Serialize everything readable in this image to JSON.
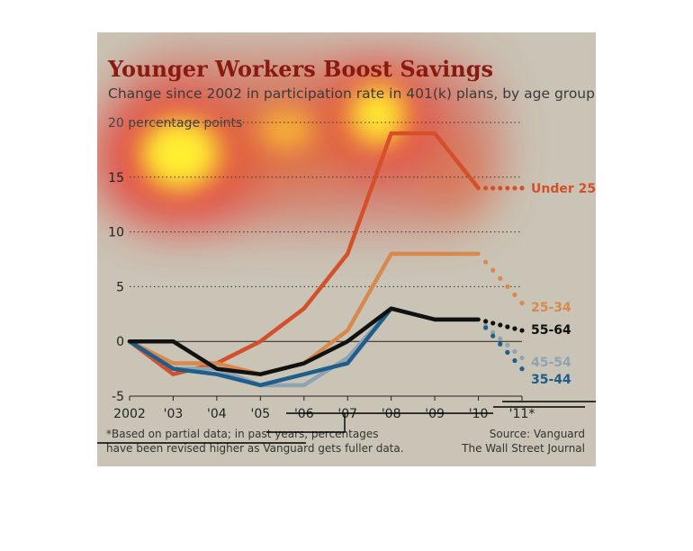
{
  "chart_data": {
    "type": "line",
    "title": "Younger Workers Boost Savings",
    "subtitle": "Change since 2002 in participation rate in 401(k) plans, by age group",
    "y_unit_label": "20 percentage points",
    "x": [
      "2002",
      "'03",
      "'04",
      "'05",
      "'06",
      "'07",
      "'08",
      "'09",
      "'10",
      "'11*"
    ],
    "ylim": [
      -5,
      20
    ],
    "yticks": [
      "-5",
      "0",
      "5",
      "10",
      "15"
    ],
    "grid": "dotted horizontal",
    "legend": "inline labels at right end",
    "dotted_from_index": 8,
    "series": [
      {
        "name": "Under 25",
        "color": "#d4502a",
        "values": [
          0,
          -3,
          -2,
          0,
          3,
          8,
          19,
          19,
          14,
          14
        ]
      },
      {
        "name": "25-34",
        "color": "#d88a4e",
        "values": [
          0,
          -2,
          -2,
          -3,
          -2,
          1,
          8,
          8,
          8,
          3.5
        ]
      },
      {
        "name": "55-64",
        "color": "#111111",
        "values": [
          0,
          0,
          -2.5,
          -3,
          -2,
          0,
          3,
          2,
          2,
          1
        ]
      },
      {
        "name": "45-54",
        "color": "#8fa3b3",
        "values": [
          0,
          -2.5,
          -2.5,
          -4,
          -4,
          -1.5,
          3,
          2,
          2,
          -1.5
        ]
      },
      {
        "name": "35-44",
        "color": "#1f5e8a",
        "values": [
          0,
          -2.5,
          -3,
          -4,
          -3,
          -2,
          3,
          2,
          2,
          -2.5
        ]
      }
    ],
    "footnote": [
      "*Based on partial data; in past years, percentages",
      "have been revised higher as Vanguard gets fuller data."
    ],
    "source": [
      "Source: Vanguard",
      "The Wall Street Journal"
    ]
  }
}
